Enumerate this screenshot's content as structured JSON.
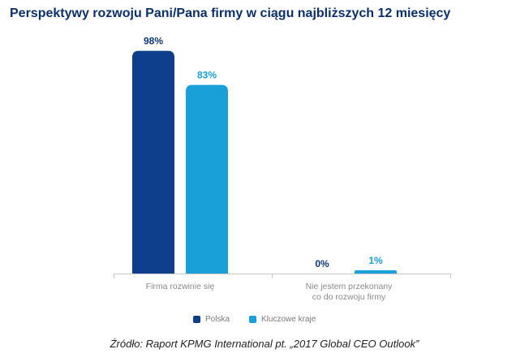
{
  "title": "Perspektywy rozwoju Pani/Pana firmy w ciągu najbliższych 12 miesięcy",
  "source": "Źródło: Raport KPMG International pt. „2017 Global CEO Outlook”",
  "colors": {
    "series1": "#0e3f8c",
    "series2": "#1aa0d8",
    "title": "#0b2f6b",
    "value_label": "#0b3a78",
    "value_label_2": "#1aa0d8",
    "axis": "#c8c8c8",
    "category": "#8a8a8a"
  },
  "chart_data": {
    "type": "bar",
    "title": "Perspektywy rozwoju Pani/Pana firmy w ciągu najbliższych 12 miesięcy",
    "categories": [
      [
        "Firma rozwinie się"
      ],
      [
        "Nie jestem przekonany",
        "co do rozwoju firmy"
      ]
    ],
    "series": [
      {
        "name": "Polska",
        "values": [
          98,
          0
        ],
        "labels": [
          "98%",
          "0%"
        ]
      },
      {
        "name": "Kluczowe kraje",
        "values": [
          83,
          1
        ],
        "labels": [
          "83%",
          "1%"
        ]
      }
    ],
    "ylim": [
      0,
      100
    ],
    "legend_position": "bottom-center",
    "grid": false
  }
}
